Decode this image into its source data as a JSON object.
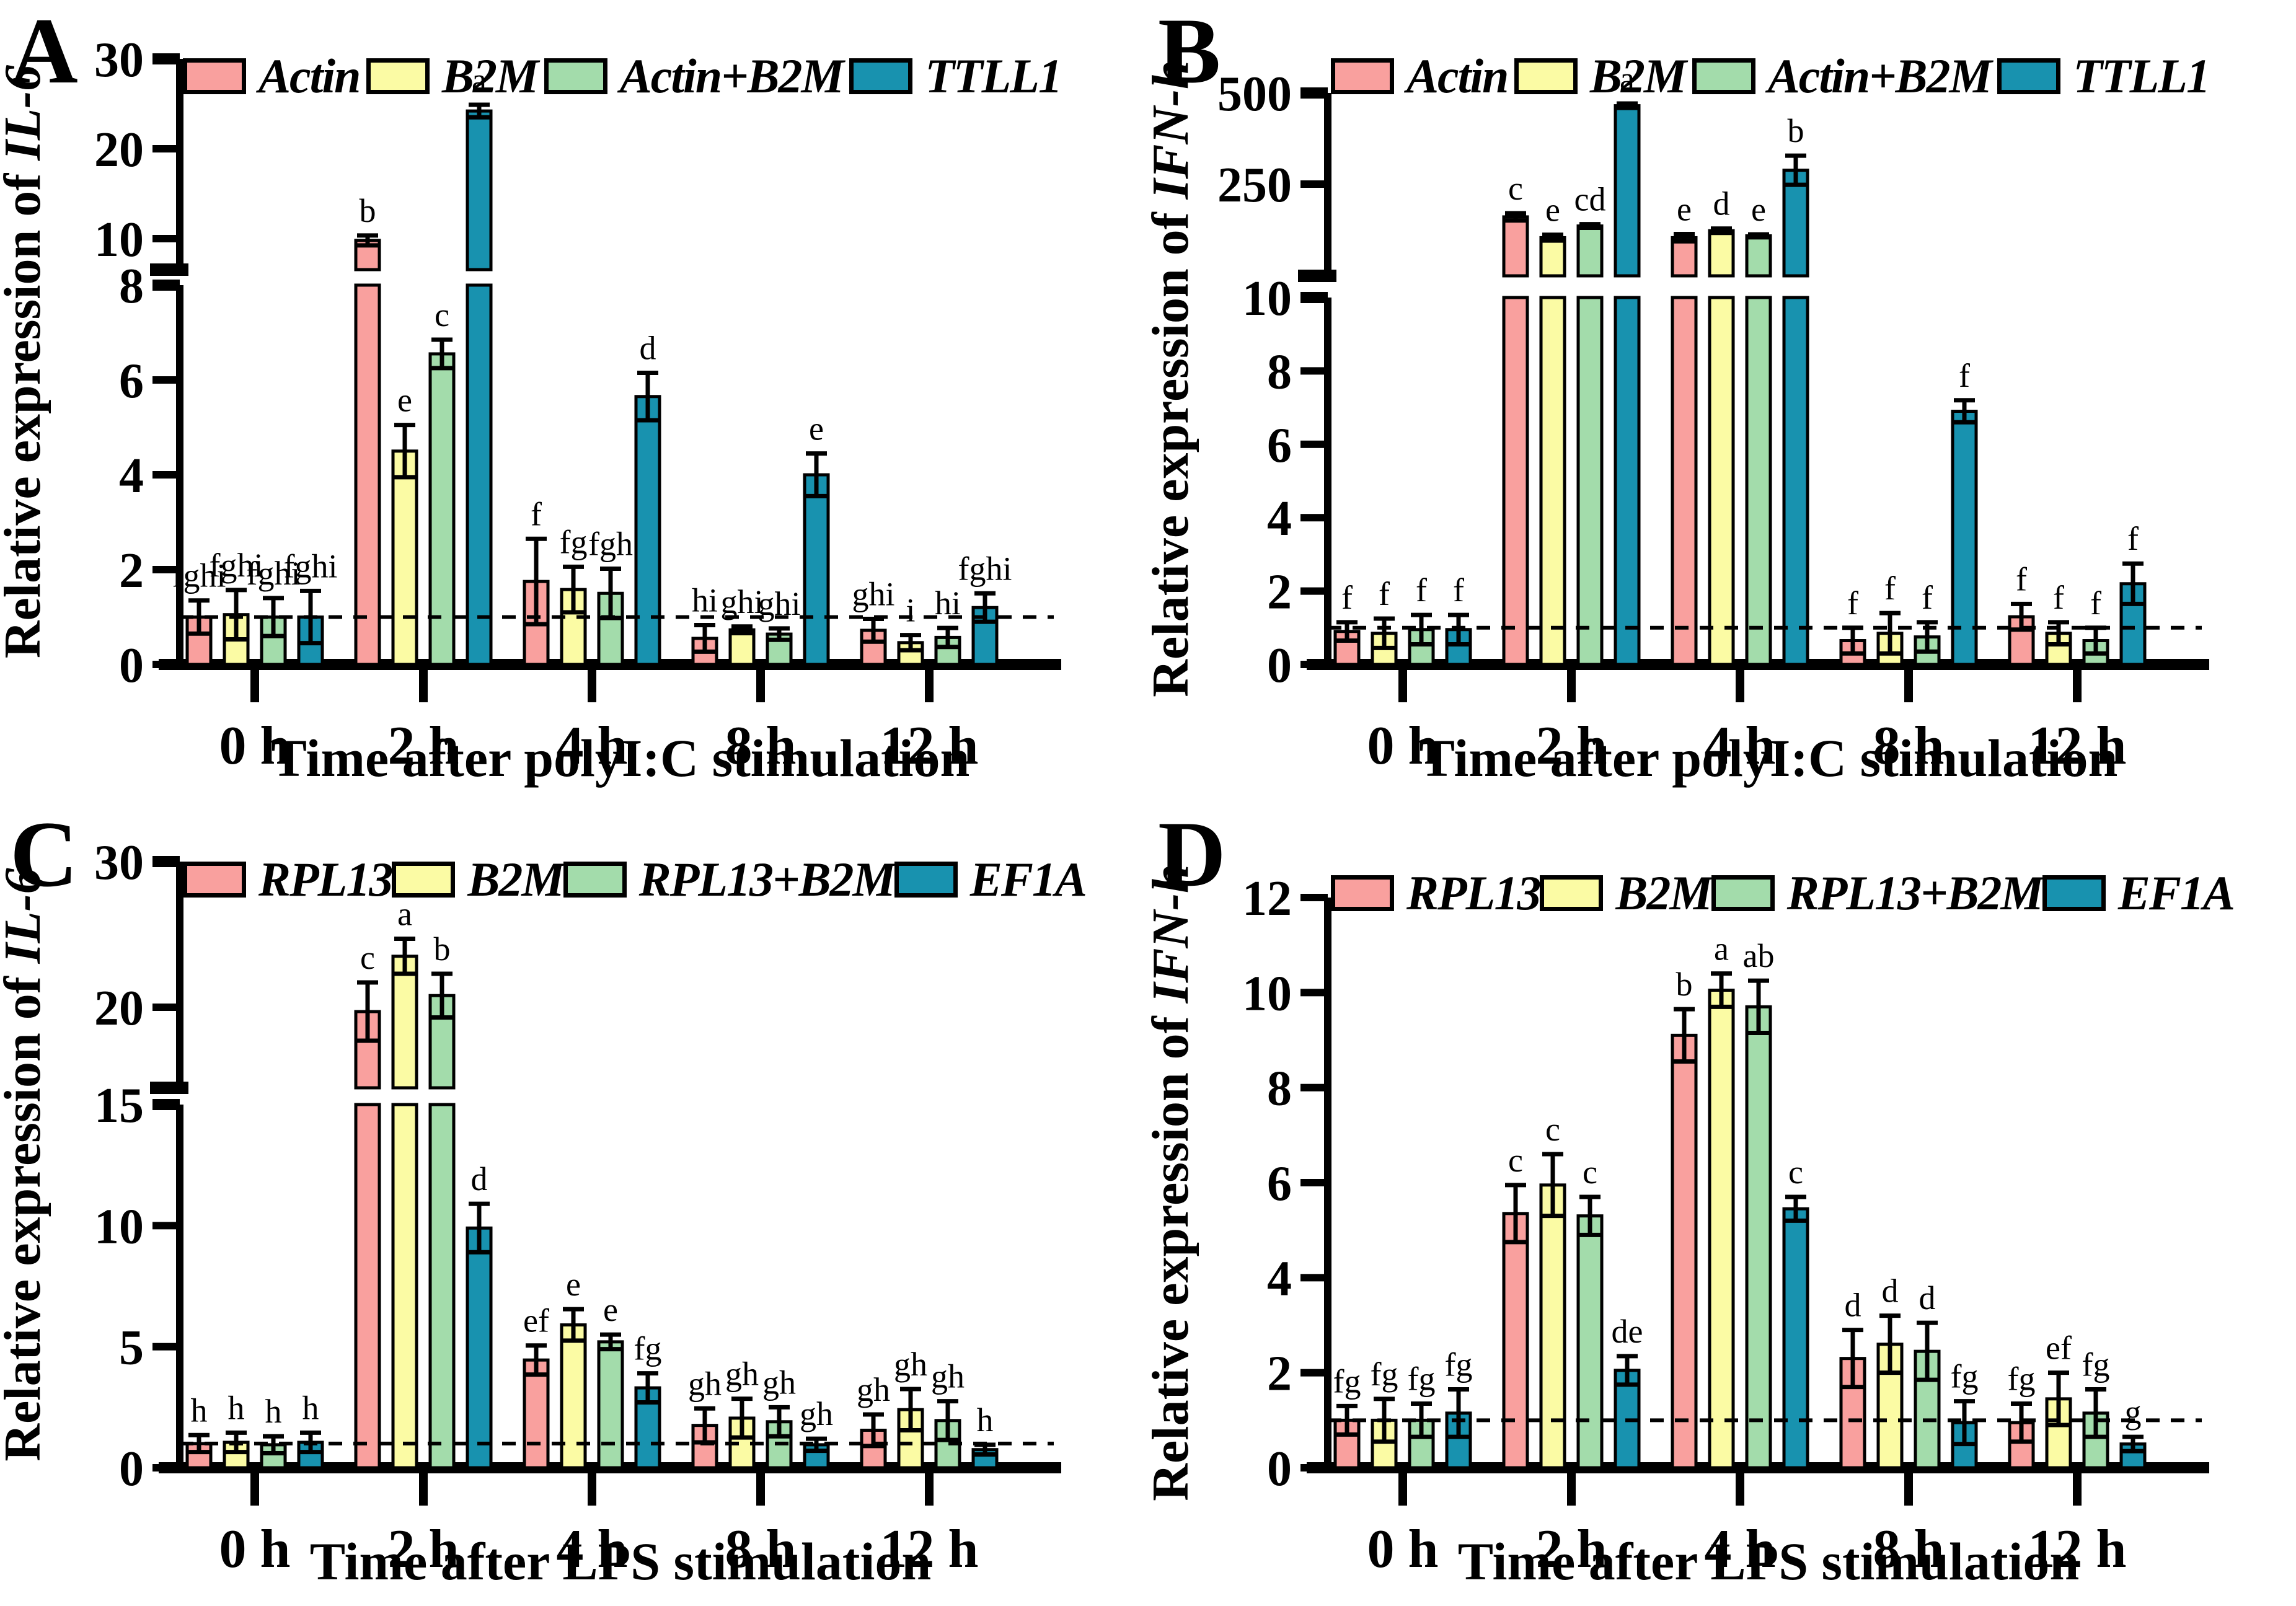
{
  "figure": {
    "description": "Four-panel bar figure of relative gene expression after stimulation",
    "background": "#ffffff",
    "reference_line_value": 1
  },
  "chart_data": [
    {
      "type": "bar",
      "panel_letter": "A",
      "ylabel_prefix": "Relative expression of ",
      "ylabel_gene": "IL-6",
      "xlabel": "Time after polyI:C stimulation",
      "categories": [
        "0 h",
        "2 h",
        "4 h",
        "8 h",
        "12 h"
      ],
      "axis": {
        "broken": true,
        "lower": {
          "max": 8,
          "ticks": [
            0,
            2,
            4,
            6,
            8
          ]
        },
        "upper": {
          "ticks": [
            10,
            20,
            30
          ]
        }
      },
      "reference_line_y": 1,
      "series": [
        {
          "name": "Actin",
          "color": "#F9A09E",
          "values": [
            1.0,
            9.8,
            1.75,
            0.55,
            0.72
          ],
          "errors": [
            0.35,
            0.55,
            0.9,
            0.28,
            0.24
          ],
          "letters": [
            "fghi",
            "b",
            "f",
            "hi",
            "ghi"
          ]
        },
        {
          "name": "B2M",
          "color": "#FBFBA4",
          "values": [
            1.05,
            4.5,
            1.58,
            0.73,
            0.46
          ],
          "errors": [
            0.52,
            0.55,
            0.48,
            0.07,
            0.16
          ],
          "letters": [
            "fghi",
            "e",
            "fg",
            "ghi",
            "i"
          ]
        },
        {
          "name": "Actin+B2M",
          "color": "#A3DCAB",
          "values": [
            1.0,
            6.55,
            1.5,
            0.64,
            0.57
          ],
          "errors": [
            0.4,
            0.3,
            0.52,
            0.12,
            0.2
          ],
          "letters": [
            "fghi",
            "c",
            "fgh",
            "ghi",
            "hi"
          ]
        },
        {
          "name": "TTLL1",
          "color": "#1892AF",
          "values": [
            1.0,
            24.2,
            5.65,
            4.0,
            1.2
          ],
          "errors": [
            0.55,
            0.7,
            0.5,
            0.45,
            0.3
          ],
          "letters": [
            "fghi",
            "a",
            "d",
            "e",
            "fghi"
          ]
        }
      ]
    },
    {
      "type": "bar",
      "panel_letter": "B",
      "ylabel_prefix": "Relative expression of ",
      "ylabel_gene": "IFN-h",
      "xlabel": "Time after polyI:C stimulation",
      "categories": [
        "0 h",
        "2 h",
        "4 h",
        "8 h",
        "12 h"
      ],
      "axis": {
        "broken": true,
        "lower": {
          "max": 10,
          "ticks": [
            0,
            2,
            4,
            6,
            8,
            10
          ]
        },
        "upper": {
          "ticks": [
            250,
            500
          ]
        }
      },
      "reference_line_y": 1,
      "series": [
        {
          "name": "Actin",
          "color": "#F9A09E",
          "values": [
            0.9,
            160,
            103,
            0.65,
            1.3
          ],
          "errors": [
            0.25,
            10,
            10,
            0.35,
            0.35
          ],
          "letters": [
            "f",
            "c",
            "e",
            "f",
            "f"
          ]
        },
        {
          "name": "B2M",
          "color": "#FBFBA4",
          "values": [
            0.85,
            103,
            122,
            0.85,
            0.85
          ],
          "errors": [
            0.4,
            8,
            6,
            0.55,
            0.3
          ],
          "letters": [
            "f",
            "e",
            "d",
            "f",
            "f"
          ]
        },
        {
          "name": "Actin+B2M",
          "color": "#A3DCAB",
          "values": [
            0.95,
            135,
            108,
            0.75,
            0.65
          ],
          "errors": [
            0.4,
            5,
            4,
            0.4,
            0.35
          ],
          "letters": [
            "f",
            "cd",
            "e",
            "f",
            "f"
          ]
        },
        {
          "name": "TTLL1",
          "color": "#1892AF",
          "values": [
            0.95,
            465,
            288,
            6.9,
            2.2
          ],
          "errors": [
            0.4,
            6,
            40,
            0.3,
            0.55
          ],
          "letters": [
            "f",
            "a",
            "b",
            "f",
            "f"
          ]
        }
      ]
    },
    {
      "type": "bar",
      "panel_letter": "C",
      "ylabel_prefix": "Relative expression of ",
      "ylabel_gene": "IL-6",
      "xlabel": "Time after LPS stimulation",
      "categories": [
        "0 h",
        "2 h",
        "4 h",
        "8 h",
        "12 h"
      ],
      "axis": {
        "broken": true,
        "lower": {
          "max": 15,
          "ticks": [
            0,
            5,
            10,
            15
          ]
        },
        "upper": {
          "ticks": [
            20,
            30
          ]
        }
      },
      "reference_line_y": 1,
      "series": [
        {
          "name": "RPL13",
          "color": "#F9A09E",
          "values": [
            1.0,
            19.7,
            4.45,
            1.75,
            1.55
          ],
          "errors": [
            0.35,
            2.0,
            0.6,
            0.7,
            0.65
          ],
          "letters": [
            "h",
            "c",
            "ef",
            "gh",
            "gh"
          ]
        },
        {
          "name": "B2M",
          "color": "#FBFBA4",
          "values": [
            1.05,
            23.5,
            5.9,
            2.05,
            2.4
          ],
          "errors": [
            0.4,
            1.2,
            0.65,
            0.8,
            0.85
          ],
          "letters": [
            "h",
            "a",
            "e",
            "gh",
            "gh"
          ]
        },
        {
          "name": "RPL13+B2M",
          "color": "#A3DCAB",
          "values": [
            0.95,
            20.8,
            5.2,
            1.9,
            1.95
          ],
          "errors": [
            0.35,
            1.5,
            0.3,
            0.6,
            0.8
          ],
          "letters": [
            "h",
            "b",
            "e",
            "gh",
            "gh"
          ]
        },
        {
          "name": "EF1A",
          "color": "#1892AF",
          "values": [
            1.05,
            9.9,
            3.3,
            0.95,
            0.75
          ],
          "errors": [
            0.4,
            1.0,
            0.6,
            0.25,
            0.2
          ],
          "letters": [
            "h",
            "d",
            "fg",
            "gh",
            "h"
          ]
        }
      ]
    },
    {
      "type": "bar",
      "panel_letter": "D",
      "ylabel_prefix": "Relative expression of ",
      "ylabel_gene": "IFN-h",
      "xlabel": "Time after LPS stimulation",
      "categories": [
        "0 h",
        "2 h",
        "4 h",
        "8 h",
        "12 h"
      ],
      "axis": {
        "broken": false,
        "lower": {
          "max": 12,
          "ticks": [
            0,
            2,
            4,
            6,
            8,
            10,
            12
          ]
        }
      },
      "reference_line_y": 1,
      "series": [
        {
          "name": "RPL13",
          "color": "#F9A09E",
          "values": [
            1.0,
            5.35,
            9.1,
            2.3,
            0.95
          ],
          "errors": [
            0.3,
            0.6,
            0.55,
            0.6,
            0.4
          ],
          "letters": [
            "fg",
            "c",
            "b",
            "d",
            "fg"
          ]
        },
        {
          "name": "B2M",
          "color": "#FBFBA4",
          "values": [
            1.0,
            5.95,
            10.05,
            2.6,
            1.45
          ],
          "errors": [
            0.45,
            0.65,
            0.35,
            0.6,
            0.55
          ],
          "letters": [
            "fg",
            "c",
            "a",
            "d",
            "ef"
          ]
        },
        {
          "name": "RPL13+B2M",
          "color": "#A3DCAB",
          "values": [
            1.0,
            5.3,
            9.7,
            2.45,
            1.15
          ],
          "errors": [
            0.35,
            0.4,
            0.55,
            0.6,
            0.5
          ],
          "letters": [
            "fg",
            "c",
            "ab",
            "d",
            "fg"
          ]
        },
        {
          "name": "EF1A",
          "color": "#1892AF",
          "values": [
            1.15,
            2.05,
            5.45,
            0.95,
            0.5
          ],
          "errors": [
            0.5,
            0.3,
            0.25,
            0.45,
            0.15
          ],
          "letters": [
            "fg",
            "de",
            "c",
            "fg",
            "g"
          ]
        }
      ]
    }
  ]
}
